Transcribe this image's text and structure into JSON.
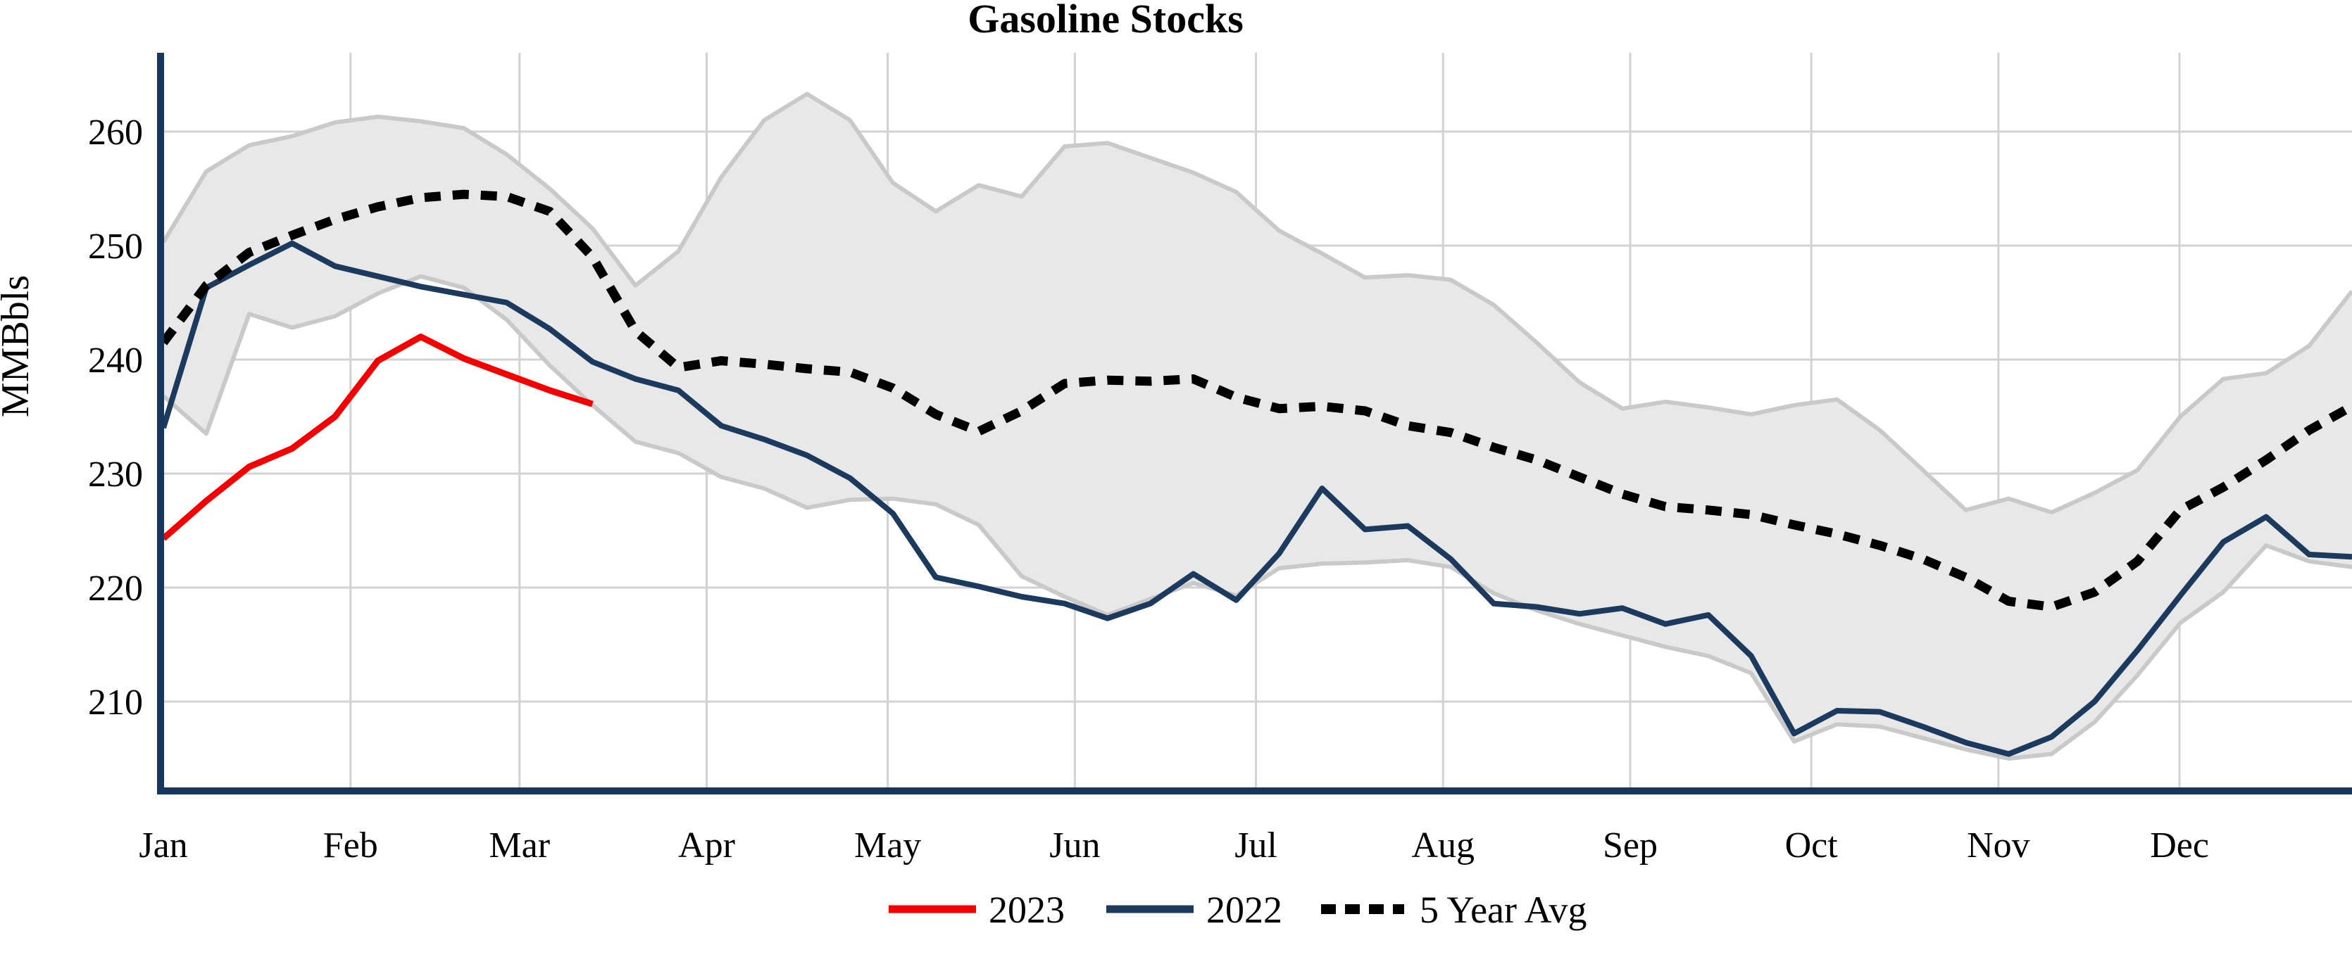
{
  "chart_data": {
    "type": "line",
    "title": "Gasoline Stocks",
    "xlabel": "",
    "ylabel": "MMBbls",
    "y_ticks": [
      210,
      220,
      230,
      240,
      250,
      260
    ],
    "ylim": [
      202.5,
      266.9
    ],
    "grid": true,
    "x_axis": {
      "tick_labels": [
        "Jan",
        "Feb",
        "Mar",
        "Apr",
        "May",
        "Jun",
        "Jul",
        "Aug",
        "Sep",
        "Oct",
        "Nov",
        "Dec"
      ],
      "cadence": "weekly",
      "points_per_year": 52
    },
    "legend": {
      "position": "bottom-center",
      "entries": [
        "2023",
        "2022",
        "5 Year Avg"
      ]
    },
    "series": [
      {
        "name": "2023",
        "color": "#f40000",
        "style": "solid",
        "values": [
          224.3,
          227.6,
          230.6,
          232.2,
          235.0,
          239.9,
          242.0,
          240.1,
          238.7,
          237.3,
          236.1
        ]
      },
      {
        "name": "2022",
        "color": "#1b3a5e",
        "style": "solid",
        "values": [
          234.0,
          246.3,
          248.3,
          250.2,
          248.2,
          247.3,
          246.4,
          245.7,
          245.0,
          242.7,
          239.8,
          238.3,
          237.3,
          234.2,
          233.0,
          231.6,
          229.6,
          226.5,
          220.9,
          220.1,
          219.2,
          218.6,
          217.3,
          218.6,
          221.2,
          218.9,
          223.0,
          228.7,
          225.1,
          225.4,
          222.5,
          218.6,
          218.3,
          217.7,
          218.2,
          216.8,
          217.6,
          214.0,
          207.2,
          209.2,
          209.1,
          207.8,
          206.4,
          205.4,
          206.9,
          210.0,
          214.5,
          219.3,
          224.0,
          226.2,
          222.9,
          222.7
        ]
      },
      {
        "name": "5 Year Avg",
        "color": "#000000",
        "style": "dotted",
        "values": [
          241.5,
          246.5,
          249.4,
          250.9,
          252.3,
          253.4,
          254.2,
          254.5,
          254.3,
          253.0,
          249.0,
          242.5,
          239.3,
          239.9,
          239.6,
          239.2,
          238.9,
          237.5,
          235.2,
          233.7,
          235.5,
          237.9,
          238.2,
          238.1,
          238.3,
          236.7,
          235.7,
          235.9,
          235.5,
          234.2,
          233.6,
          232.3,
          231.2,
          229.7,
          228.2,
          227.1,
          226.8,
          226.4,
          225.5,
          224.7,
          223.7,
          222.5,
          220.9,
          218.8,
          218.3,
          219.6,
          222.3,
          226.8,
          228.8,
          231.2,
          233.8,
          235.9
        ]
      }
    ],
    "band": {
      "name": "5-year min-max range",
      "fill": "#e8e8e8",
      "edge_color": "#c9c9c9",
      "upper": [
        250.3,
        256.5,
        258.8,
        259.6,
        260.8,
        261.3,
        260.9,
        260.3,
        258.0,
        255.0,
        251.5,
        246.5,
        249.5,
        256.0,
        261.0,
        263.3,
        261.0,
        255.5,
        253.0,
        255.3,
        254.3,
        258.7,
        259.0,
        257.7,
        256.4,
        254.7,
        251.3,
        249.3,
        247.2,
        247.4,
        247.0,
        244.8,
        241.5,
        238.0,
        235.7,
        236.3,
        235.8,
        235.2,
        236.0,
        236.5,
        233.8,
        230.3,
        226.8,
        227.8,
        226.6,
        228.3,
        230.3,
        235.0,
        238.3,
        238.8,
        241.2,
        246.0
      ],
      "lower": [
        236.8,
        233.5,
        244.0,
        242.8,
        243.8,
        245.8,
        247.3,
        246.3,
        243.5,
        239.5,
        236.0,
        232.8,
        231.8,
        229.7,
        228.7,
        227.0,
        227.7,
        227.8,
        227.3,
        225.5,
        221.0,
        219.2,
        217.6,
        219.0,
        220.4,
        219.3,
        221.7,
        222.1,
        222.2,
        222.4,
        221.8,
        219.5,
        218.0,
        216.8,
        215.8,
        214.8,
        214.0,
        212.5,
        206.5,
        208.0,
        207.8,
        206.8,
        205.8,
        205.0,
        205.4,
        208.2,
        212.3,
        216.9,
        219.6,
        223.7,
        222.3,
        221.8
      ]
    },
    "colors": {
      "axis": "#17365d",
      "gridline": "#d2d2d2",
      "background": "#ffffff",
      "text": "#000000"
    }
  }
}
